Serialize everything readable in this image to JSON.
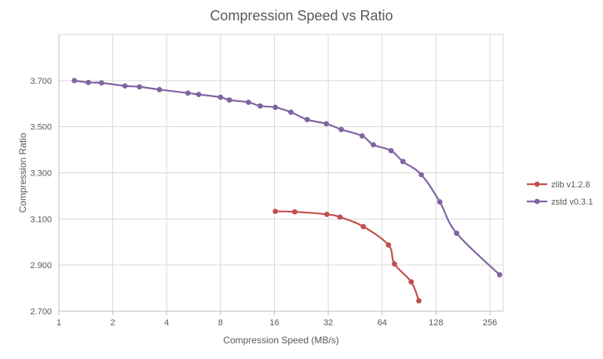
{
  "chart_data": {
    "type": "scatter",
    "title": "Compression Speed vs Ratio",
    "xlabel": "Compression Speed (MB/s)",
    "ylabel": "Compression Ratio",
    "x_scale": "log2",
    "xlim": [
      1,
      304
    ],
    "ylim": [
      2.7,
      3.9
    ],
    "x_ticks": [
      1,
      2,
      4,
      8,
      16,
      32,
      64,
      128,
      256
    ],
    "y_ticks": [
      2.7,
      2.9,
      3.1,
      3.3,
      3.5,
      3.7
    ],
    "x_tick_labels": [
      "1",
      "2",
      "4",
      "8",
      "16",
      "32",
      "64",
      "128",
      "256"
    ],
    "y_tick_labels": [
      "2.700",
      "2.900",
      "3.100",
      "3.300",
      "3.500",
      "3.700"
    ],
    "grid": "vertical and horizontal",
    "legend_position": "right",
    "series": [
      {
        "name": "zlib v1.2.8",
        "color": "#c0504d",
        "x": [
          16.2,
          20.8,
          31.4,
          37.2,
          50.2,
          69.4,
          75.0,
          93.0,
          102.6
        ],
        "y": [
          3.133,
          3.131,
          3.12,
          3.108,
          3.067,
          2.987,
          2.905,
          2.827,
          2.745
        ]
      },
      {
        "name": "zstd v0.3.1",
        "color": "#8064a2",
        "x": [
          1.22,
          1.46,
          1.73,
          2.34,
          2.82,
          3.65,
          5.26,
          6.04,
          8.0,
          8.97,
          11.46,
          13.32,
          16.2,
          19.8,
          24.4,
          31.2,
          37.8,
          49.5,
          57.1,
          71.8,
          83.6,
          105.9,
          134.3,
          166.8,
          289.9
        ],
        "y": [
          3.7,
          3.692,
          3.69,
          3.677,
          3.673,
          3.661,
          3.646,
          3.64,
          3.628,
          3.616,
          3.606,
          3.59,
          3.584,
          3.563,
          3.531,
          3.513,
          3.488,
          3.46,
          3.422,
          3.396,
          3.349,
          3.292,
          3.174,
          3.038,
          2.858
        ]
      }
    ]
  }
}
